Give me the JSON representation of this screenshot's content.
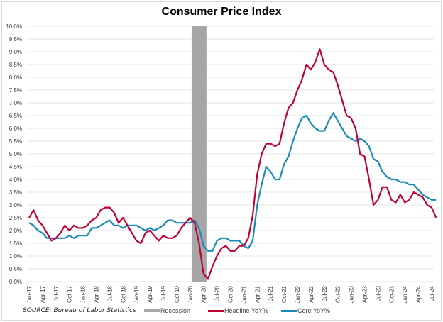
{
  "chart_data": {
    "type": "line",
    "title": "Consumer Price Index",
    "xlabel": "",
    "ylabel": "",
    "ylim": [
      0,
      10
    ],
    "y_ticks": [
      "0.0%",
      "0.5%",
      "1.0%",
      "1.5%",
      "2.0%",
      "2.5%",
      "3.0%",
      "3.5%",
      "4.0%",
      "4.5%",
      "5.0%",
      "5.5%",
      "6.0%",
      "6.5%",
      "7.0%",
      "7.5%",
      "8.0%",
      "8.5%",
      "9.0%",
      "9.5%",
      "10.0%"
    ],
    "y_tick_values": [
      0,
      0.5,
      1,
      1.5,
      2,
      2.5,
      3,
      3.5,
      4,
      4.5,
      5,
      5.5,
      6,
      6.5,
      7,
      7.5,
      8,
      8.5,
      9,
      9.5,
      10
    ],
    "x_tick_labels": [
      "Jan-17",
      "Apr-17",
      "Jul-17",
      "Oct-17",
      "Jan-18",
      "Apr-18",
      "Jul-18",
      "Oct-18",
      "Jan-19",
      "Apr-19",
      "Jul-19",
      "Oct-19",
      "Jan-20",
      "Apr-20",
      "Jul-20",
      "Oct-20",
      "Jan-21",
      "Apr-21",
      "Jul-21",
      "Oct-21",
      "Jan-22",
      "Apr-22",
      "Jul-22",
      "Oct-22",
      "Jan-23",
      "Apr-23",
      "Jul-23",
      "Oct-23",
      "Jan-24",
      "Apr-24",
      "Jul-24"
    ],
    "x_start": "Jan-17",
    "n_months": 92,
    "grid": true,
    "legend_position": "bottom",
    "recession": {
      "name": "Recession",
      "start_month_index": 37,
      "end_month_index": 40,
      "color": "#a6a6a6"
    },
    "series": [
      {
        "name": "Headline YoY%",
        "color": "#c00036",
        "values": [
          2.5,
          2.8,
          2.4,
          2.2,
          1.9,
          1.6,
          1.7,
          1.9,
          2.2,
          2.0,
          2.2,
          2.1,
          2.1,
          2.2,
          2.4,
          2.5,
          2.8,
          2.9,
          2.9,
          2.7,
          2.3,
          2.5,
          2.2,
          1.9,
          1.6,
          1.5,
          1.9,
          2.0,
          1.8,
          1.6,
          1.8,
          1.7,
          1.7,
          1.8,
          2.1,
          2.3,
          2.5,
          2.3,
          1.5,
          0.3,
          0.1,
          0.6,
          1.0,
          1.3,
          1.4,
          1.2,
          1.2,
          1.4,
          1.4,
          1.7,
          2.6,
          4.2,
          5.0,
          5.4,
          5.4,
          5.3,
          5.4,
          6.2,
          6.8,
          7.0,
          7.5,
          7.9,
          8.5,
          8.3,
          8.6,
          9.1,
          8.5,
          8.3,
          8.2,
          7.7,
          7.1,
          6.5,
          6.4,
          6.0,
          5.0,
          4.9,
          4.0,
          3.0,
          3.2,
          3.7,
          3.7,
          3.2,
          3.1,
          3.4,
          3.1,
          3.2,
          3.5,
          3.4,
          3.3,
          3.0,
          2.9,
          2.5
        ]
      },
      {
        "name": "Core YoY%",
        "color": "#1b8ab8",
        "values": [
          2.3,
          2.2,
          2.0,
          1.9,
          1.7,
          1.7,
          1.7,
          1.7,
          1.7,
          1.8,
          1.7,
          1.8,
          1.8,
          1.8,
          2.1,
          2.1,
          2.2,
          2.3,
          2.4,
          2.2,
          2.2,
          2.1,
          2.2,
          2.2,
          2.2,
          2.1,
          2.0,
          2.1,
          2.0,
          2.1,
          2.2,
          2.4,
          2.4,
          2.3,
          2.3,
          2.3,
          2.3,
          2.4,
          2.1,
          1.4,
          1.2,
          1.2,
          1.6,
          1.7,
          1.7,
          1.6,
          1.6,
          1.6,
          1.4,
          1.3,
          1.6,
          3.0,
          3.8,
          4.5,
          4.3,
          4.0,
          4.0,
          4.6,
          4.9,
          5.5,
          6.0,
          6.4,
          6.5,
          6.2,
          6.0,
          5.9,
          5.9,
          6.3,
          6.6,
          6.3,
          6.0,
          5.7,
          5.6,
          5.5,
          5.6,
          5.5,
          5.3,
          4.8,
          4.7,
          4.3,
          4.1,
          4.0,
          4.0,
          3.9,
          3.9,
          3.8,
          3.8,
          3.6,
          3.4,
          3.3,
          3.2,
          3.2
        ]
      }
    ],
    "annotations": [
      "SOURCE: Bureau of Labor Statistics"
    ]
  },
  "legend": {
    "source": "SOURCE: Bureau of Labor Statistics",
    "recession_label": "Recession",
    "headline_label": "Headline YoY%",
    "core_label": "Core YoY%"
  },
  "colors": {
    "headline": "#c00036",
    "core": "#1b8ab8",
    "recession": "#a6a6a6",
    "grid": "#e6e6e6"
  }
}
